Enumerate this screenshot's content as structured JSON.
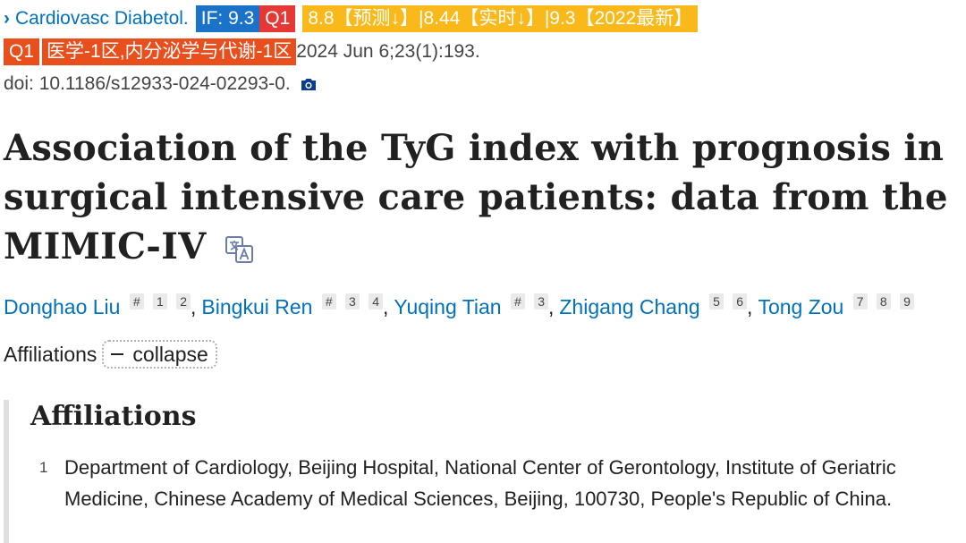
{
  "citation": {
    "journal": "Cardiovasc Diabetol.",
    "if_badge": "IF: 9.3",
    "q1_badge": "Q1",
    "prediction_badge": "8.8【预测↓】|8.44【实时↓】|9.3【2022最新】",
    "q1_badge2": "Q1",
    "category_badge": "医学-1区,内分泌学与代谢-1区",
    "date_vol": "2024 Jun 6;23(1):193.",
    "doi": "doi: 10.1186/s12933-024-02293-0."
  },
  "title": "Association of the TyG index with prognosis in surgical intensive care patients: data from the MIMIC-IV",
  "authors": [
    {
      "name": "Donghao Liu",
      "sups": [
        "#",
        "1",
        "2"
      ]
    },
    {
      "name": "Bingkui Ren",
      "sups": [
        "#",
        "3",
        "4"
      ]
    },
    {
      "name": "Yuqing Tian",
      "sups": [
        "#",
        "3"
      ]
    },
    {
      "name": "Zhigang Chang",
      "sups": [
        "5",
        "6"
      ]
    },
    {
      "name": "Tong Zou",
      "sups": [
        "7",
        "8",
        "9"
      ]
    }
  ],
  "affiliations_label": "Affiliations",
  "collapse_label": "collapse",
  "affiliations_heading": "Affiliations",
  "affiliations": [
    {
      "num": "1",
      "text": "Department of Cardiology, Beijing Hospital, National Center of Gerontology, Institute of Geriatric Medicine, Chinese Academy of Medical Sciences, Beijing, 100730, People's Republic of China."
    }
  ],
  "colors": {
    "link": "#0071bc",
    "if_badge": "#1a73c8",
    "q1_badge": "#e53935",
    "prediction_badge": "#f9b91a",
    "category_badge": "#e84f1c"
  },
  "icons": [
    "chevron-right-icon",
    "camera-icon",
    "translate-icon",
    "minus-icon"
  ]
}
